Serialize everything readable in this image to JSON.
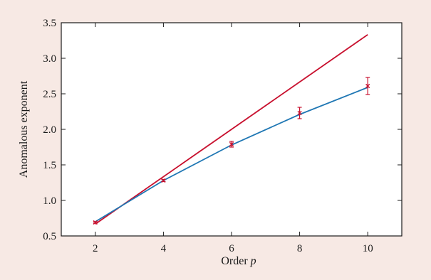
{
  "colors": {
    "background": "#f7e9e4",
    "plot_background": "#ffffff",
    "axis": "#1a1a1a",
    "straight_line": "#c8102e",
    "fit_line": "#1f77b4",
    "markers": "#c8102e"
  },
  "chart_data": {
    "type": "line",
    "title": "",
    "xlabel_main": "Order ",
    "xlabel_symbol": "p",
    "ylabel": "Anomalous exponent",
    "xlim": [
      1,
      11
    ],
    "ylim": [
      0.5,
      3.5
    ],
    "xticks": [
      2,
      4,
      6,
      8,
      10
    ],
    "xtick_labels": [
      "2",
      "4",
      "6",
      "8",
      "10"
    ],
    "yticks": [
      0.5,
      1.0,
      1.5,
      2.0,
      2.5,
      3.0,
      3.5
    ],
    "ytick_labels": [
      "0.5",
      "1.0",
      "1.5",
      "2.0",
      "2.5",
      "3.0",
      "3.5"
    ],
    "grid": false,
    "series": [
      {
        "kind": "line",
        "x": [
          2,
          10
        ],
        "y": [
          0.667,
          3.333
        ]
      },
      {
        "kind": "line",
        "x": [
          2,
          4,
          6,
          8,
          10
        ],
        "y": [
          0.7,
          1.28,
          1.78,
          2.21,
          2.59
        ]
      },
      {
        "kind": "points-with-error",
        "x": [
          2,
          4,
          6,
          8,
          10
        ],
        "y": [
          0.69,
          1.28,
          1.79,
          2.23,
          2.61
        ],
        "err": [
          0.01,
          0.015,
          0.04,
          0.08,
          0.12
        ]
      }
    ]
  }
}
